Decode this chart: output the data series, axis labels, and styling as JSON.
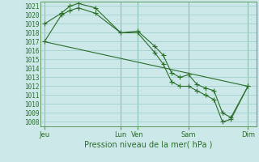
{
  "xlabel": "Pression niveau de la mer( hPa )",
  "ylim": [
    1007.5,
    1021.5
  ],
  "ytick_min": 1008,
  "ytick_max": 1021,
  "background_color": "#cce8e8",
  "grid_color": "#99cccc",
  "line_color": "#2a6e2a",
  "spine_color": "#5a9a5a",
  "day_labels": [
    "Jeu",
    "Lun",
    "Ven",
    "Sam",
    "Dim"
  ],
  "day_positions": [
    0,
    9,
    11,
    17,
    24
  ],
  "xlim": [
    -0.5,
    25
  ],
  "line1_x": [
    0,
    2,
    3,
    4,
    6,
    9,
    11,
    13,
    14,
    15,
    16,
    17,
    18,
    19,
    20,
    21,
    22,
    24
  ],
  "line1_y": [
    1019.0,
    1020.2,
    1021.0,
    1021.3,
    1020.8,
    1018.0,
    1018.2,
    1016.5,
    1015.5,
    1013.5,
    1013.0,
    1013.3,
    1012.2,
    1011.8,
    1011.5,
    1009.0,
    1008.5,
    1012.0
  ],
  "line2_x": [
    0,
    2,
    3,
    4,
    6,
    9,
    11,
    13,
    14,
    15,
    16,
    17,
    18,
    19,
    20,
    21,
    22,
    24
  ],
  "line2_y": [
    1017.0,
    1020.0,
    1020.5,
    1020.8,
    1020.2,
    1018.0,
    1018.0,
    1015.8,
    1014.5,
    1012.5,
    1012.0,
    1012.0,
    1011.5,
    1011.0,
    1010.5,
    1008.0,
    1008.3,
    1012.0
  ],
  "line3_x": [
    0,
    24
  ],
  "line3_y": [
    1017.0,
    1012.0
  ],
  "marker": "+",
  "marker_size": 4,
  "line_width": 0.8
}
